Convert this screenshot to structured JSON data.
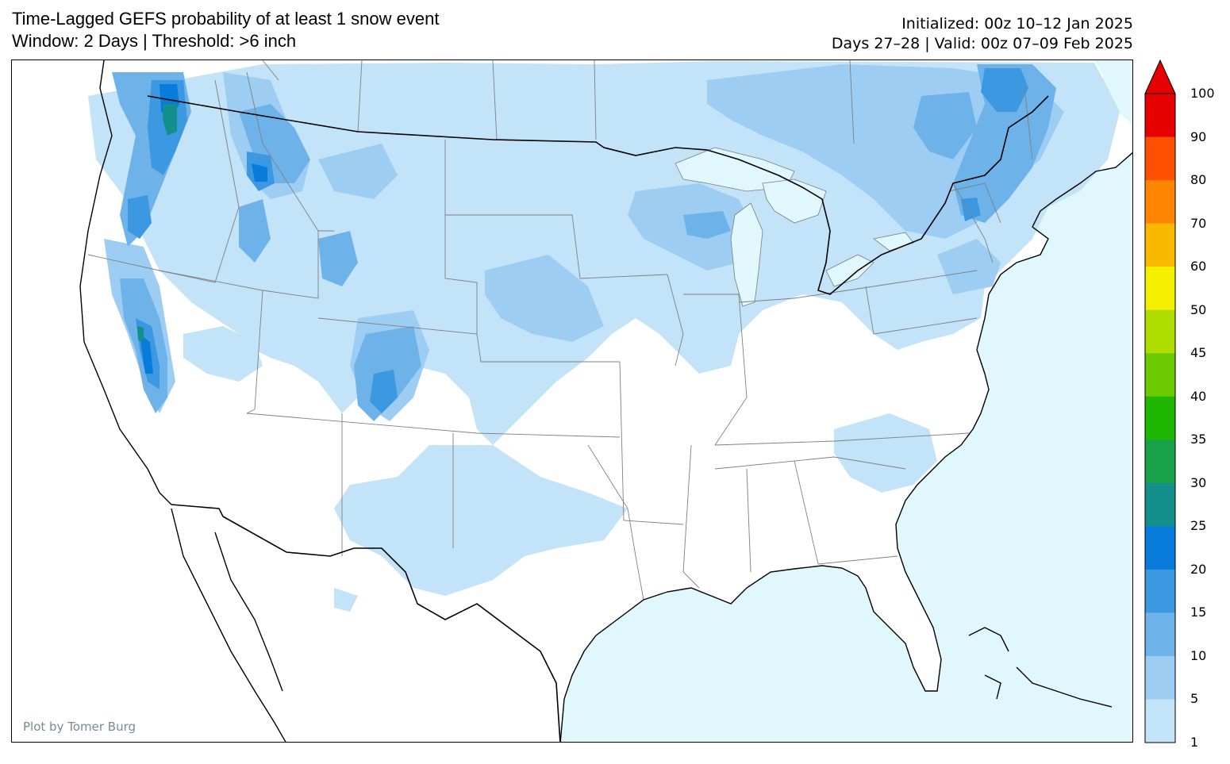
{
  "header": {
    "title_line1": "Time-Lagged GEFS probability of at least 1 snow event",
    "title_line2": "Window: 2 Days | Threshold: >6 inch",
    "init_line": "Initialized: 00z 10–12 Jan 2025",
    "valid_line": "Days 27–28 | Valid: 00z 07–09 Feb 2025"
  },
  "credit": "Plot by Tomer Burg",
  "colorbar": {
    "labels": [
      "100",
      "90",
      "80",
      "70",
      "60",
      "50",
      "45",
      "40",
      "35",
      "30",
      "25",
      "20",
      "15",
      "10",
      "5",
      "1"
    ],
    "colors": [
      "#e60000",
      "#ff4f00",
      "#ff8400",
      "#f8b900",
      "#f4ef00",
      "#b0dd00",
      "#6ccb00",
      "#1fb600",
      "#19a24a",
      "#138f8c",
      "#097cdb",
      "#3c98e0",
      "#6db3e9",
      "#9dcdf2",
      "#c3e3f8"
    ],
    "extend_color": "#e60000"
  },
  "map": {
    "ocean_color": "#e0f7fd",
    "land_color": "#ffffff",
    "lakes_color": "#e0f7fd"
  }
}
